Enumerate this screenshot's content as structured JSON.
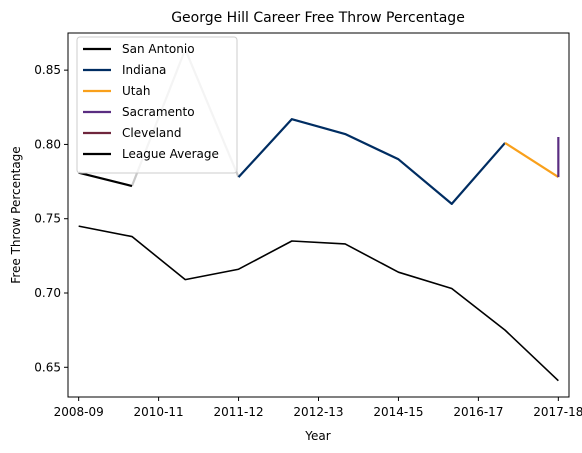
{
  "chart_data": {
    "type": "line",
    "title": "George Hill  Career Free Throw Percentage",
    "xlabel": "Year",
    "ylabel": "Free Throw Percentage",
    "xlim": [
      -0.2,
      9.2
    ],
    "ylim": [
      0.63,
      0.875
    ],
    "x_ticks": [
      {
        "pos": 0,
        "label": "2008-09"
      },
      {
        "pos": 1.5,
        "label": "2010-11"
      },
      {
        "pos": 3,
        "label": "2011-12"
      },
      {
        "pos": 4.5,
        "label": "2012-13"
      },
      {
        "pos": 6,
        "label": "2014-15"
      },
      {
        "pos": 7.5,
        "label": "2016-17"
      },
      {
        "pos": 9,
        "label": "2017-18"
      }
    ],
    "y_ticks": [
      0.65,
      0.7,
      0.75,
      0.8,
      0.85
    ],
    "y_tick_labels": [
      "0.65",
      "0.70",
      "0.75",
      "0.80",
      "0.85"
    ],
    "legend_position": "top-left",
    "grid": false,
    "series": [
      {
        "name": "San Antonio",
        "color": "#000000",
        "x": [
          0,
          1
        ],
        "y": [
          0.781,
          0.772
        ]
      },
      {
        "name": "Indiana",
        "color": "#002D62",
        "x": [
          3,
          4,
          5,
          6,
          7,
          8
        ],
        "y": [
          0.778,
          0.817,
          0.807,
          0.79,
          0.76,
          0.801
        ]
      },
      {
        "name": "Utah",
        "color": "#F9A01B",
        "x": [
          8,
          9
        ],
        "y": [
          0.801,
          0.778
        ]
      },
      {
        "name": "Sacramento",
        "color": "#5A2D81",
        "x": [
          9,
          9
        ],
        "y": [
          0.805,
          0.778
        ]
      },
      {
        "name": "Cleveland",
        "color": "#6F263D",
        "x": [
          9
        ],
        "y": [
          0.778
        ]
      },
      {
        "name": "League Average",
        "color": "#000000",
        "x": [
          0,
          1,
          2,
          3,
          4,
          5,
          6,
          7,
          8,
          9
        ],
        "y": [
          0.745,
          0.738,
          0.709,
          0.716,
          0.735,
          0.733,
          0.714,
          0.703,
          0.675,
          0.641
        ]
      }
    ],
    "annotations": [
      {
        "type": "connector",
        "color": "#c8c8c8",
        "x": [
          1,
          2,
          3
        ],
        "y": [
          0.772,
          0.864,
          0.778
        ]
      }
    ]
  }
}
